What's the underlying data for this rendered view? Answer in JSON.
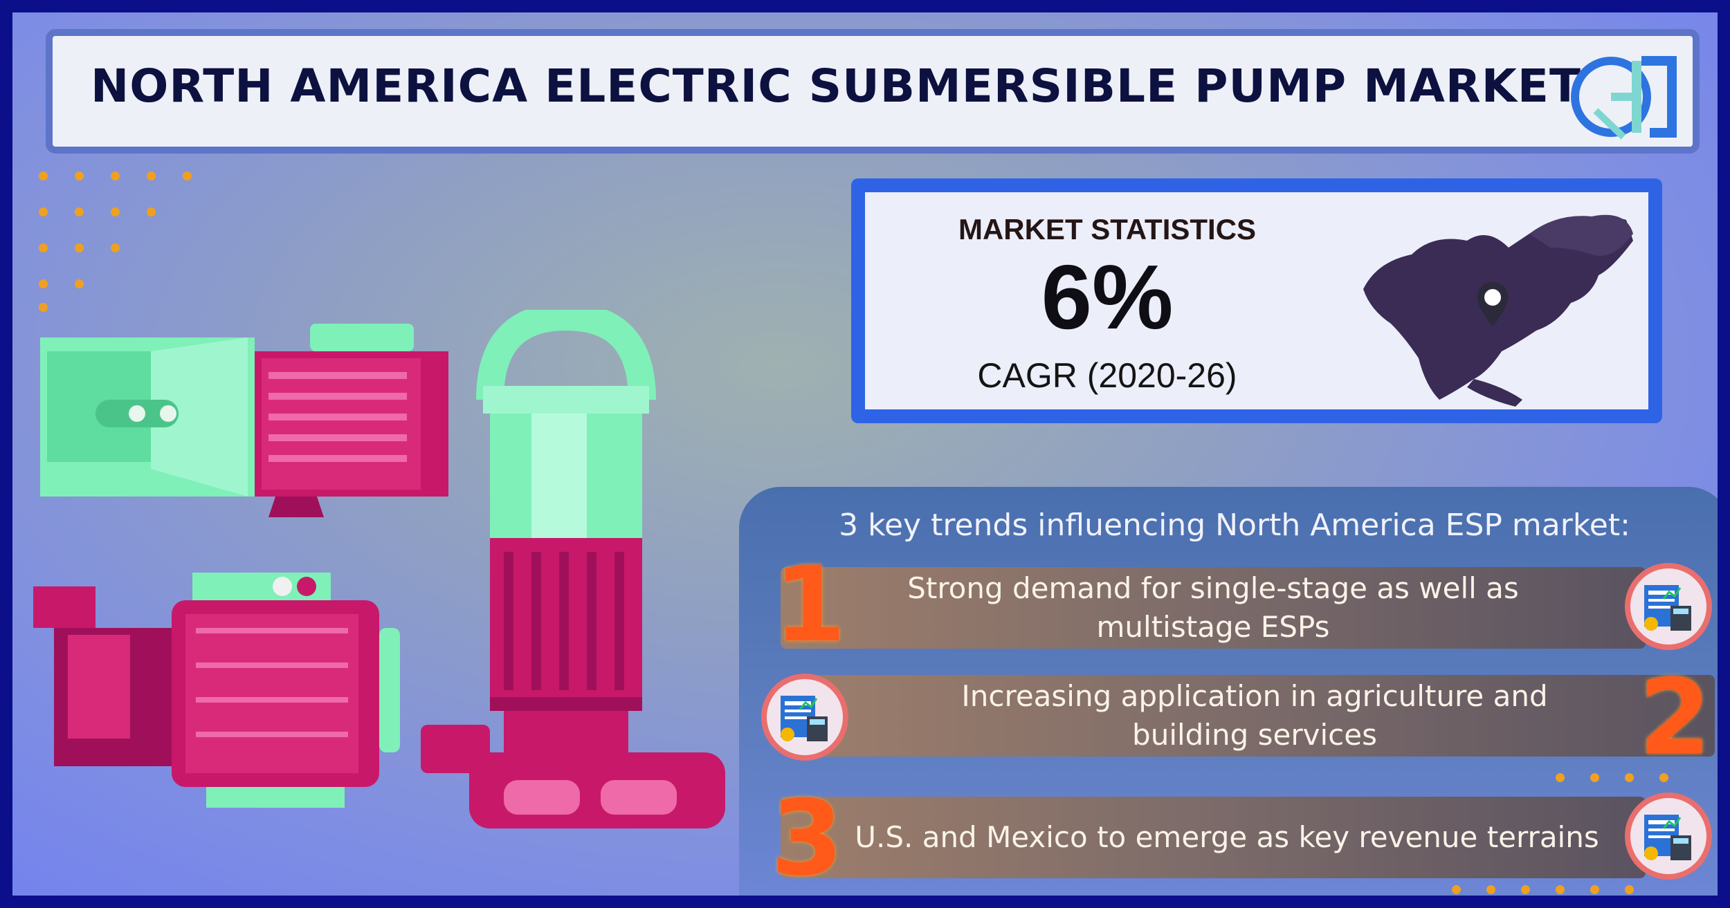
{
  "header": {
    "title": "NORTH AMERICA ELECTRIC SUBMERSIBLE PUMP MARKET"
  },
  "stats": {
    "label": "MARKET STATISTICS",
    "value": "6%",
    "sub": "CAGR (2020-26)"
  },
  "trends": {
    "heading": "3 key trends influencing North America ESP market:",
    "items": [
      {
        "number": "1",
        "text": "Strong demand for single-stage as well as multistage ESPs"
      },
      {
        "number": "2",
        "text": "Increasing application in agriculture and building services"
      },
      {
        "number": "3",
        "text": "U.S. and Mexico to emerge as key revenue terrains"
      }
    ]
  },
  "colors": {
    "frame": "#0b0f8a",
    "accent_blue": "#2f63e6",
    "pump_green": "#7ff0b8",
    "pump_magenta": "#c8186a",
    "number_orange": "#ff5a1a"
  },
  "icons": {
    "logo": "gr-logo-icon",
    "map": "north-america-map-icon",
    "pin": "location-pin-icon",
    "badge": "report-calculator-icon"
  }
}
